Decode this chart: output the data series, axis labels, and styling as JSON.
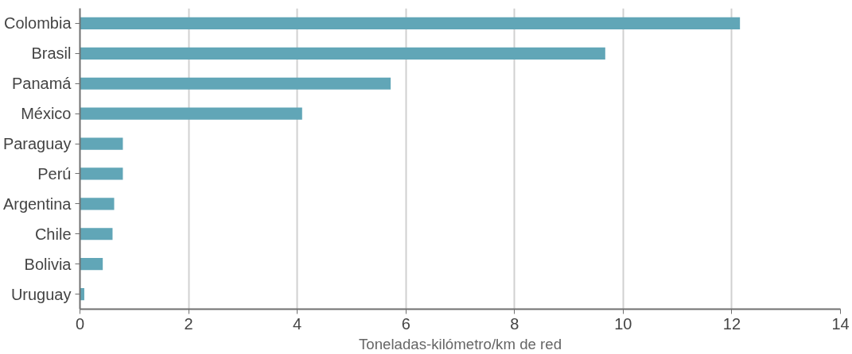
{
  "chart_data": {
    "type": "bar",
    "orientation": "horizontal",
    "xlabel": "Toneladas-kilómetro/km de red",
    "categories": [
      "Colombia",
      "Brasil",
      "Panamá",
      "México",
      "Paraguay",
      "Perú",
      "Argentina",
      "Chile",
      "Bolivia",
      "Uruguay"
    ],
    "values": [
      12.15,
      9.67,
      5.72,
      4.09,
      0.79,
      0.79,
      0.63,
      0.6,
      0.42,
      0.08
    ],
    "color": "#61a6b7",
    "xlim": [
      0,
      14
    ],
    "xticks": [
      0,
      2,
      4,
      6,
      8,
      10,
      12,
      14
    ],
    "grid": "x"
  }
}
